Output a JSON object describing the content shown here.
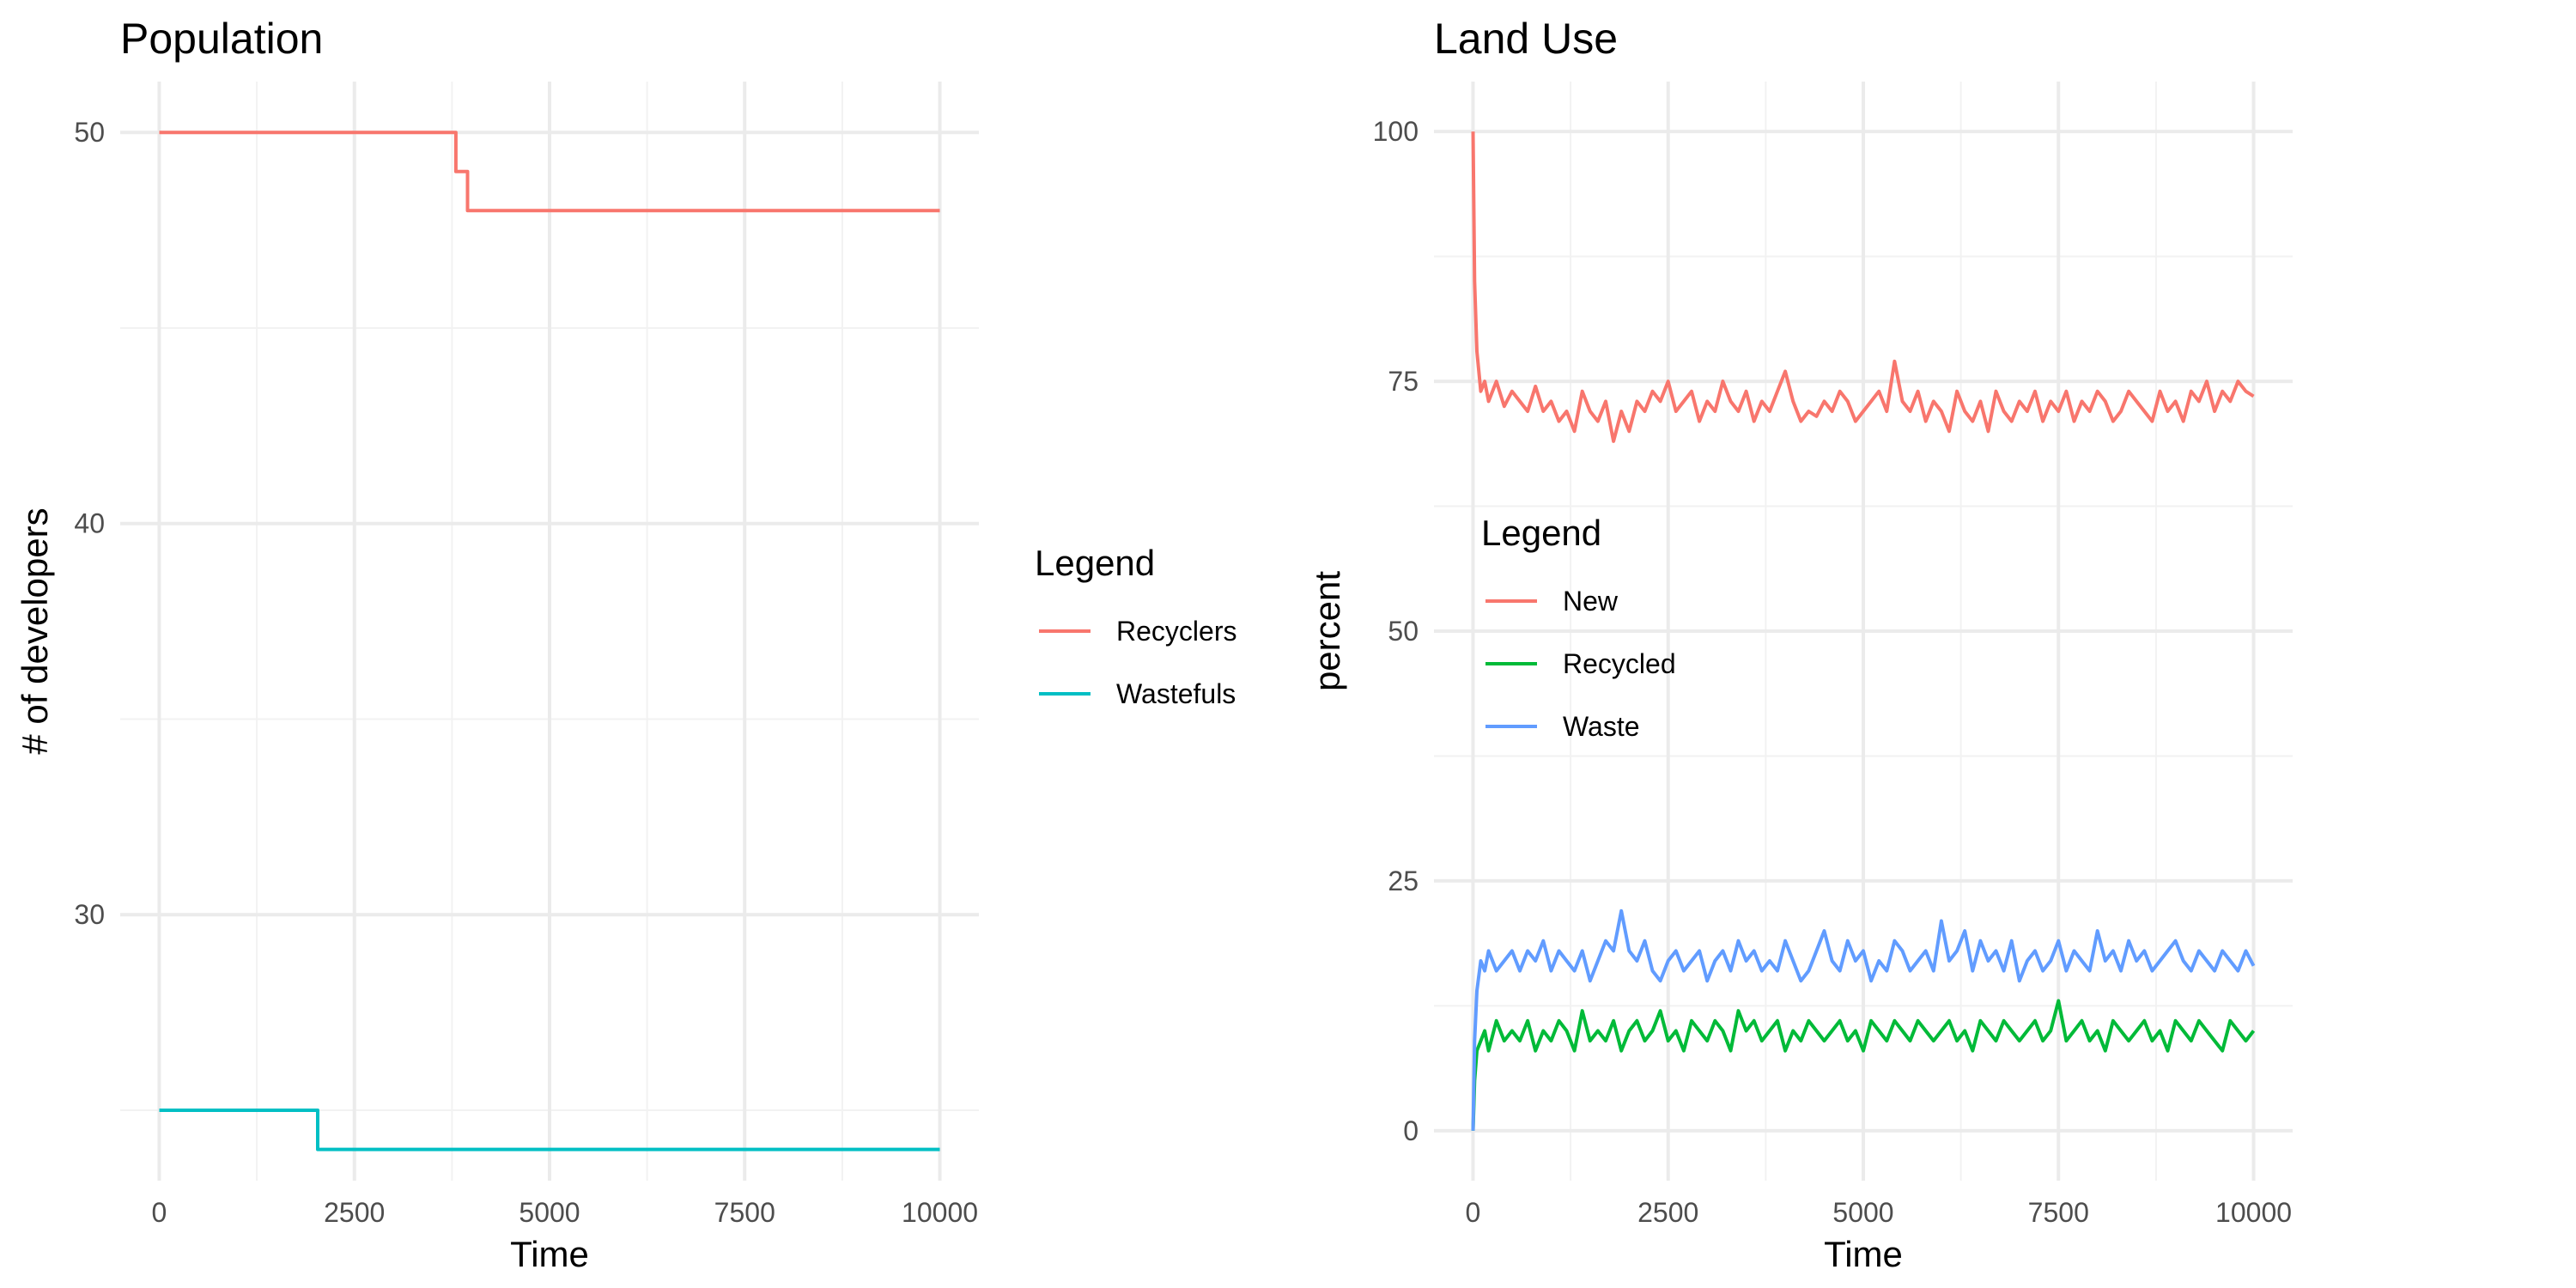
{
  "chart_data": [
    {
      "type": "line",
      "title": "Population",
      "xlabel": "Time",
      "ylabel": "# of developers",
      "xlim": [
        -500,
        10500
      ],
      "ylim": [
        23.2,
        51.3
      ],
      "xticks": [
        0,
        2500,
        5000,
        7500,
        10000
      ],
      "yticks": [
        30,
        40,
        50
      ],
      "grid": true,
      "legend": {
        "title": "Legend",
        "position": "right"
      },
      "series": [
        {
          "name": "Recyclers",
          "color": "#F8766D",
          "step": true,
          "x": [
            0,
            3800,
            3800,
            3950,
            3950,
            10000
          ],
          "y": [
            50,
            50,
            49,
            49,
            48,
            48
          ]
        },
        {
          "name": "Wastefuls",
          "color": "#00BFC4",
          "step": true,
          "x": [
            0,
            2030,
            2030,
            10000
          ],
          "y": [
            25,
            25,
            24,
            24
          ]
        }
      ]
    },
    {
      "type": "line",
      "title": "Land Use",
      "xlabel": "Time",
      "ylabel": "percent",
      "xlim": [
        -500,
        10500
      ],
      "ylim": [
        -5,
        105
      ],
      "xticks": [
        0,
        2500,
        5000,
        7500,
        10000
      ],
      "yticks": [
        0,
        25,
        50,
        75,
        100
      ],
      "grid": true,
      "legend": {
        "title": "Legend",
        "position": "right"
      },
      "series": [
        {
          "name": "New",
          "color": "#F8766D",
          "x": [
            0,
            20,
            50,
            100,
            150,
            200,
            300,
            400,
            500,
            600,
            700,
            800,
            900,
            1000,
            1100,
            1200,
            1300,
            1400,
            1500,
            1600,
            1700,
            1800,
            1900,
            2000,
            2100,
            2200,
            2300,
            2400,
            2500,
            2600,
            2700,
            2800,
            2900,
            3000,
            3100,
            3200,
            3300,
            3400,
            3500,
            3600,
            3700,
            3800,
            3900,
            4000,
            4100,
            4200,
            4300,
            4400,
            4500,
            4600,
            4700,
            4800,
            4900,
            5000,
            5100,
            5200,
            5300,
            5400,
            5500,
            5600,
            5700,
            5800,
            5900,
            6000,
            6100,
            6200,
            6300,
            6400,
            6500,
            6600,
            6700,
            6800,
            6900,
            7000,
            7100,
            7200,
            7300,
            7400,
            7500,
            7600,
            7700,
            7800,
            7900,
            8000,
            8100,
            8200,
            8300,
            8400,
            8500,
            8600,
            8700,
            8800,
            8900,
            9000,
            9100,
            9200,
            9300,
            9400,
            9500,
            9600,
            9700,
            9800,
            9900,
            10000
          ],
          "y": [
            100,
            85,
            78,
            74,
            75,
            73,
            75,
            72.5,
            74,
            73,
            72,
            74.5,
            72,
            73,
            71,
            72,
            70,
            74,
            72,
            71,
            73,
            69,
            72,
            70,
            73,
            72,
            74,
            73,
            75,
            72,
            73,
            74,
            71,
            73,
            72,
            75,
            73,
            72,
            74,
            71,
            73,
            72,
            74,
            76,
            73,
            71,
            72,
            71.5,
            73,
            72,
            74,
            73,
            71,
            72,
            73,
            74,
            72,
            77,
            73,
            72,
            74,
            71,
            73,
            72,
            70,
            74,
            72,
            71,
            73,
            70,
            74,
            72,
            71,
            73,
            72,
            74,
            71,
            73,
            72,
            74,
            71,
            73,
            72,
            74,
            73,
            71,
            72,
            74,
            73,
            72,
            71,
            74,
            72,
            73,
            71,
            74,
            73,
            75,
            72,
            74,
            73,
            75,
            74,
            73.5
          ]
        },
        {
          "name": "Recycled",
          "color": "#00BA38",
          "x": [
            0,
            20,
            50,
            100,
            150,
            200,
            300,
            400,
            500,
            600,
            700,
            800,
            900,
            1000,
            1100,
            1200,
            1300,
            1400,
            1500,
            1600,
            1700,
            1800,
            1900,
            2000,
            2100,
            2200,
            2300,
            2400,
            2500,
            2600,
            2700,
            2800,
            2900,
            3000,
            3100,
            3200,
            3300,
            3400,
            3500,
            3600,
            3700,
            3800,
            3900,
            4000,
            4100,
            4200,
            4300,
            4400,
            4500,
            4600,
            4700,
            4800,
            4900,
            5000,
            5100,
            5200,
            5300,
            5400,
            5500,
            5600,
            5700,
            5800,
            5900,
            6000,
            6100,
            6200,
            6300,
            6400,
            6500,
            6600,
            6700,
            6800,
            6900,
            7000,
            7100,
            7200,
            7300,
            7400,
            7500,
            7600,
            7700,
            7800,
            7900,
            8000,
            8100,
            8200,
            8300,
            8400,
            8500,
            8600,
            8700,
            8800,
            8900,
            9000,
            9100,
            9200,
            9300,
            9400,
            9500,
            9600,
            9700,
            9800,
            9900,
            10000
          ],
          "y": [
            0,
            5,
            8,
            9,
            10,
            8,
            11,
            9,
            10,
            9,
            11,
            8,
            10,
            9,
            11,
            10,
            8,
            12,
            9,
            10,
            9,
            11,
            8,
            10,
            11,
            9,
            10,
            12,
            9,
            10,
            8,
            11,
            10,
            9,
            11,
            10,
            8,
            12,
            10,
            11,
            9,
            10,
            11,
            8,
            10,
            9,
            11,
            10,
            9,
            10,
            11,
            9,
            10,
            8,
            11,
            10,
            9,
            11,
            10,
            9,
            11,
            10,
            9,
            10,
            11,
            9,
            10,
            8,
            11,
            10,
            9,
            11,
            10,
            9,
            10,
            11,
            9,
            10,
            13,
            9,
            10,
            11,
            9,
            10,
            8,
            11,
            10,
            9,
            10,
            11,
            9,
            10,
            8,
            11,
            10,
            9,
            11,
            10,
            9,
            8,
            11,
            10,
            9,
            10
          ]
        },
        {
          "name": "Waste",
          "color": "#619CFF",
          "x": [
            0,
            20,
            50,
            100,
            150,
            200,
            300,
            400,
            500,
            600,
            700,
            800,
            900,
            1000,
            1100,
            1200,
            1300,
            1400,
            1500,
            1600,
            1700,
            1800,
            1900,
            2000,
            2100,
            2200,
            2300,
            2400,
            2500,
            2600,
            2700,
            2800,
            2900,
            3000,
            3100,
            3200,
            3300,
            3400,
            3500,
            3600,
            3700,
            3800,
            3900,
            4000,
            4100,
            4200,
            4300,
            4400,
            4500,
            4600,
            4700,
            4800,
            4900,
            5000,
            5100,
            5200,
            5300,
            5400,
            5500,
            5600,
            5700,
            5800,
            5900,
            6000,
            6100,
            6200,
            6300,
            6400,
            6500,
            6600,
            6700,
            6800,
            6900,
            7000,
            7100,
            7200,
            7300,
            7400,
            7500,
            7600,
            7700,
            7800,
            7900,
            8000,
            8100,
            8200,
            8300,
            8400,
            8500,
            8600,
            8700,
            8800,
            8900,
            9000,
            9100,
            9200,
            9300,
            9400,
            9500,
            9600,
            9700,
            9800,
            9900,
            10000
          ],
          "y": [
            0,
            9,
            14,
            17,
            16,
            18,
            16,
            17,
            18,
            16,
            18,
            17,
            19,
            16,
            18,
            17,
            16,
            18,
            15,
            17,
            19,
            18,
            22,
            18,
            17,
            19,
            16,
            15,
            17,
            18,
            16,
            17,
            18,
            15,
            17,
            18,
            16,
            19,
            17,
            18,
            16,
            17,
            16,
            19,
            17,
            15,
            16,
            18,
            20,
            17,
            16,
            19,
            17,
            18,
            15,
            17,
            16,
            19,
            18,
            16,
            17,
            18,
            16,
            21,
            17,
            18,
            20,
            16,
            19,
            17,
            18,
            16,
            19,
            15,
            17,
            18,
            16,
            17,
            19,
            16,
            18,
            17,
            16,
            20,
            17,
            18,
            16,
            19,
            17,
            18,
            16,
            17,
            18,
            19,
            17,
            16,
            18,
            17,
            16,
            18,
            17,
            16,
            18,
            16.5
          ]
        }
      ]
    }
  ]
}
